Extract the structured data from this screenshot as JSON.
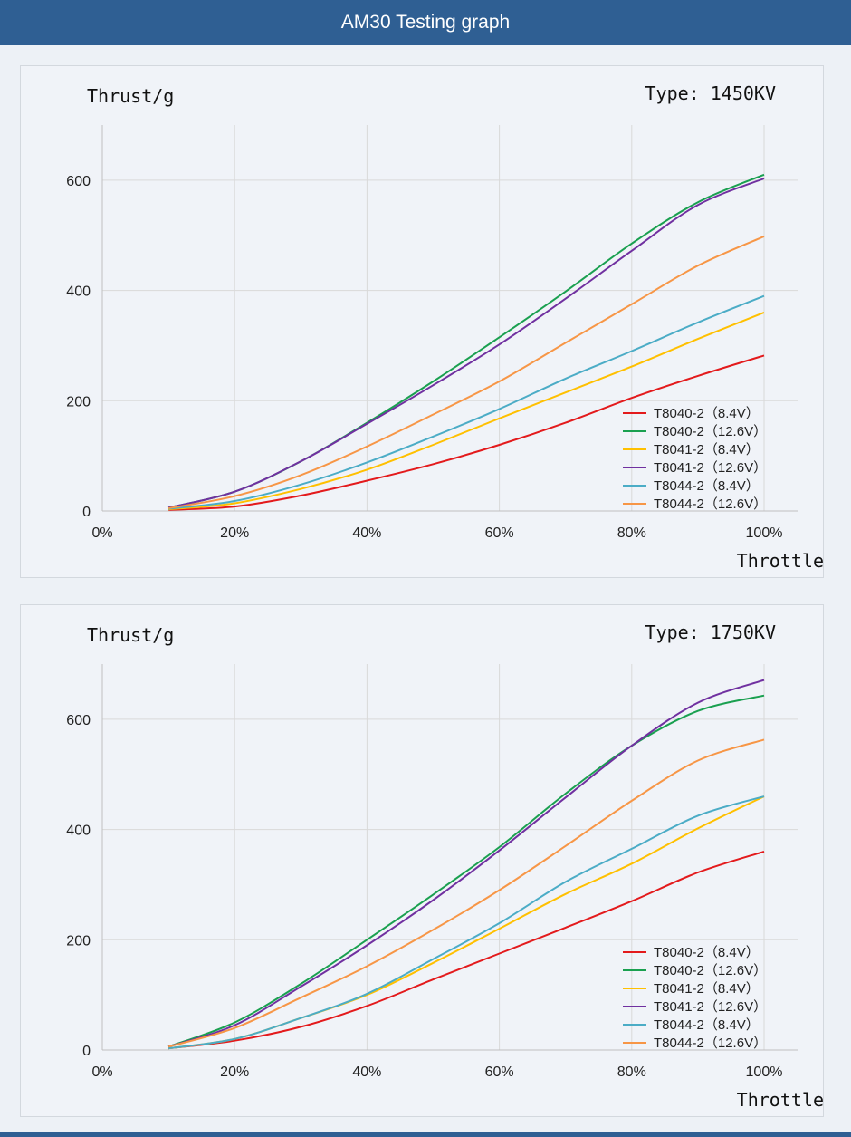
{
  "header": {
    "title": "AM30 Testing graph"
  },
  "colors": {
    "header_bg": "#2f5f93",
    "series": [
      "#e31a1c",
      "#1aa050",
      "#ffc000",
      "#7030a0",
      "#4bacc6",
      "#f79646"
    ]
  },
  "chart_data": [
    {
      "type": "line",
      "title": "Type: 1450KV",
      "xlabel": "Throttle",
      "ylabel": "Thrust/g",
      "x_ticks": [
        "0%",
        "20%",
        "40%",
        "60%",
        "80%",
        "100%"
      ],
      "y_ticks": [
        "0",
        "200",
        "400",
        "600"
      ],
      "xlim": [
        0,
        100
      ],
      "ylim": [
        0,
        700
      ],
      "grid": true,
      "legend": "bottom-right",
      "x": [
        10,
        20,
        30,
        40,
        50,
        60,
        70,
        80,
        90,
        100
      ],
      "series": [
        {
          "name": "T8040-2（8.4V）",
          "color": "#e31a1c",
          "values": [
            2,
            8,
            28,
            55,
            85,
            120,
            160,
            205,
            245,
            282
          ]
        },
        {
          "name": "T8040-2（12.6V）",
          "color": "#1aa050",
          "values": [
            6,
            35,
            90,
            160,
            235,
            315,
            398,
            485,
            560,
            610
          ]
        },
        {
          "name": "T8041-2（8.4V）",
          "color": "#ffc000",
          "values": [
            3,
            14,
            40,
            75,
            120,
            168,
            215,
            262,
            312,
            360
          ]
        },
        {
          "name": "T8041-2（12.6V）",
          "color": "#7030a0",
          "values": [
            6,
            35,
            90,
            158,
            228,
            302,
            385,
            472,
            555,
            603
          ]
        },
        {
          "name": "T8044-2（8.4V）",
          "color": "#4bacc6",
          "values": [
            4,
            18,
            48,
            88,
            135,
            185,
            240,
            290,
            342,
            390
          ]
        },
        {
          "name": "T8044-2（12.6V）",
          "color": "#f79646",
          "values": [
            5,
            27,
            65,
            117,
            175,
            235,
            305,
            375,
            445,
            498
          ]
        }
      ]
    },
    {
      "type": "line",
      "title": "Type: 1750KV",
      "xlabel": "Throttle",
      "ylabel": "Thrust/g",
      "x_ticks": [
        "0%",
        "20%",
        "40%",
        "60%",
        "80%",
        "100%"
      ],
      "y_ticks": [
        "0",
        "200",
        "400",
        "600"
      ],
      "xlim": [
        0,
        100
      ],
      "ylim": [
        0,
        700
      ],
      "grid": true,
      "legend": "bottom-right",
      "x": [
        10,
        20,
        30,
        40,
        50,
        60,
        70,
        80,
        90,
        100
      ],
      "series": [
        {
          "name": "T8040-2（8.4V）",
          "color": "#e31a1c",
          "values": [
            3,
            17,
            42,
            80,
            128,
            175,
            222,
            270,
            322,
            360
          ]
        },
        {
          "name": "T8040-2（12.6V）",
          "color": "#1aa050",
          "values": [
            6,
            50,
            120,
            200,
            282,
            368,
            465,
            552,
            615,
            643
          ]
        },
        {
          "name": "T8041-2（8.4V）",
          "color": "#ffc000",
          "values": [
            3,
            20,
            58,
            100,
            158,
            220,
            283,
            338,
            402,
            460
          ]
        },
        {
          "name": "T8041-2（12.6V）",
          "color": "#7030a0",
          "values": [
            6,
            45,
            115,
            190,
            272,
            362,
            458,
            552,
            630,
            671
          ]
        },
        {
          "name": "T8044-2（8.4V）",
          "color": "#4bacc6",
          "values": [
            3,
            20,
            58,
            102,
            165,
            230,
            305,
            365,
            425,
            460
          ]
        },
        {
          "name": "T8044-2（12.6V）",
          "color": "#f79646",
          "values": [
            6,
            40,
            95,
            152,
            218,
            290,
            370,
            452,
            525,
            563
          ]
        }
      ]
    }
  ]
}
